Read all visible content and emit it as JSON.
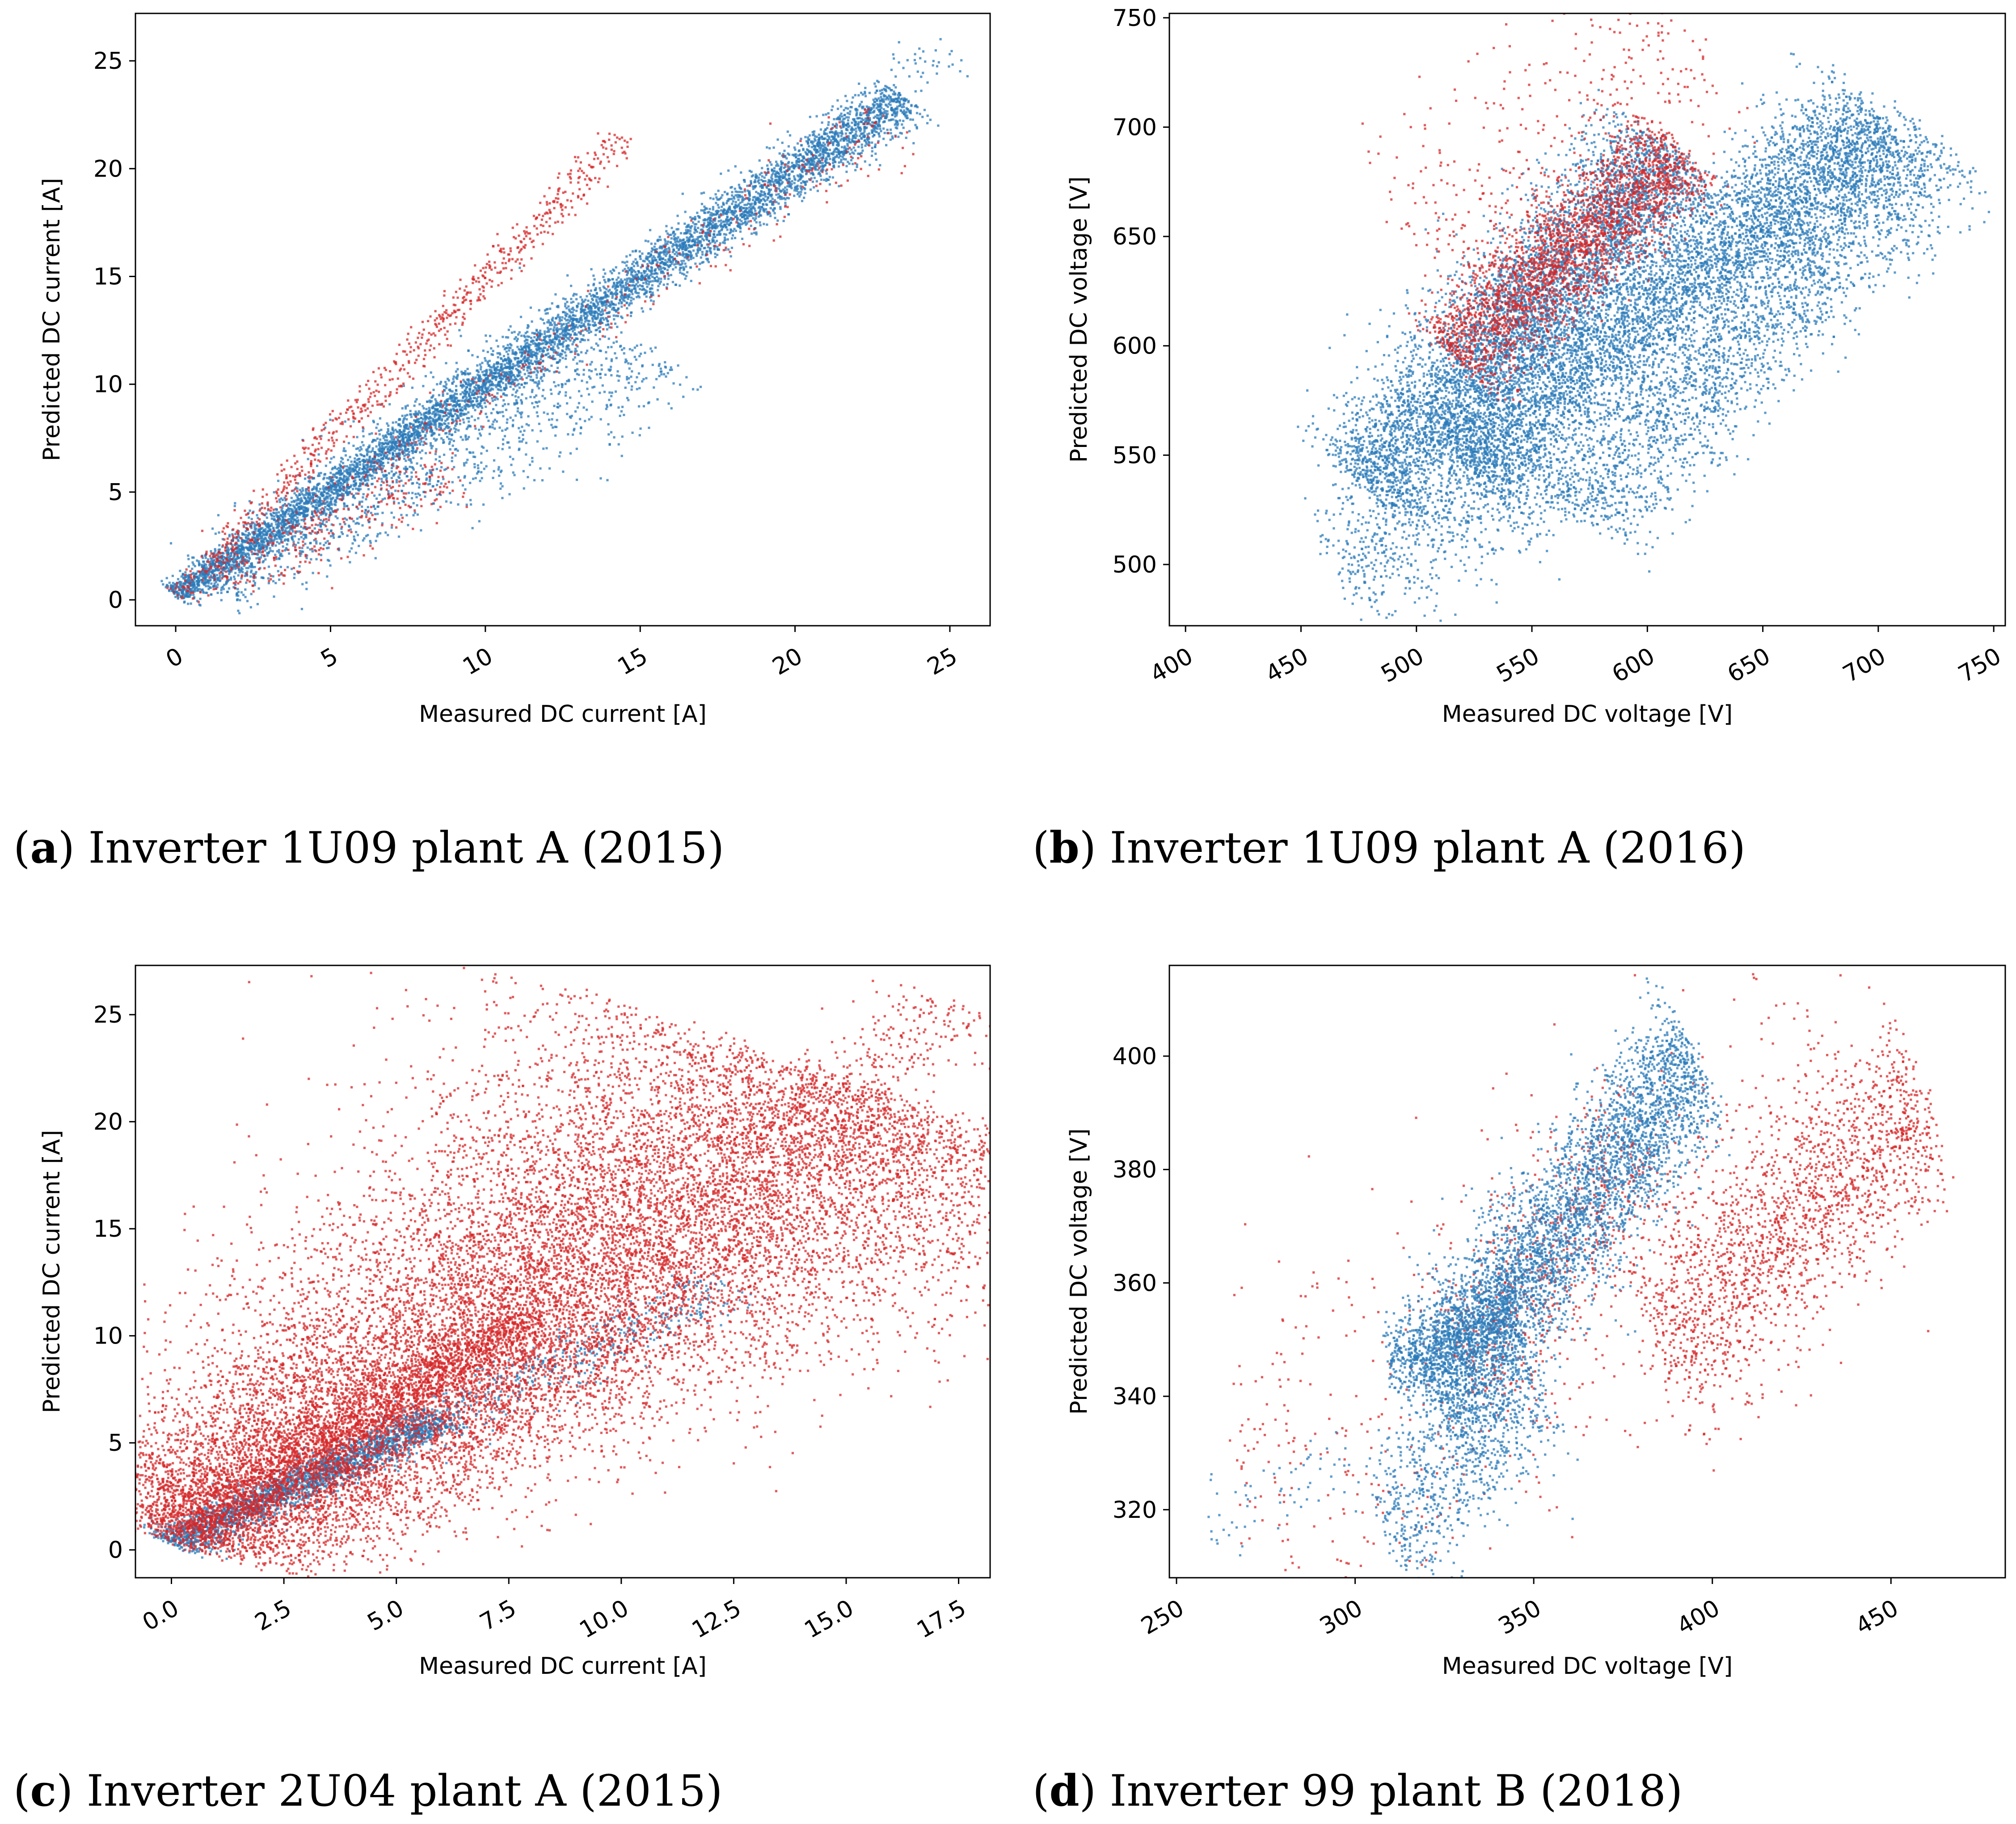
{
  "figure": {
    "colors": {
      "blue": "#2b7bba",
      "red": "#d62728",
      "axis": "#000000"
    },
    "captions": [
      {
        "tag": "a",
        "text": "Inverter 1U09 plant A (2015)"
      },
      {
        "tag": "b",
        "text": "Inverter 1U09 plant A (2016)"
      },
      {
        "tag": "c",
        "text": "Inverter 2U04 plant A (2015)"
      },
      {
        "tag": "d",
        "text": "Inverter 99 plant B (2018)"
      }
    ]
  },
  "chart_data": [
    {
      "id": "a",
      "type": "scatter",
      "xlabel": "Measured DC current [A]",
      "ylabel": "Predicted DC current [A]",
      "xlim": [
        -1.3,
        26.3
      ],
      "ylim": [
        -1.2,
        27.2
      ],
      "xticks": [
        0,
        5,
        10,
        15,
        20,
        25
      ],
      "xtick_labels": [
        "0",
        "5",
        "10",
        "15",
        "20",
        "25"
      ],
      "yticks": [
        0,
        5,
        10,
        15,
        20,
        25
      ],
      "ytick_labels": [
        "0",
        "5",
        "10",
        "15",
        "20",
        "25"
      ],
      "xtick_rotation": 30,
      "series": [
        {
          "name": "blue",
          "color": "#2b7bba",
          "clusters": [
            {
              "x": [
                0,
                23.5
              ],
              "y": [
                0.2,
                23.3
              ],
              "n": 6000,
              "spread": 0.3,
              "scale": 0.03
            },
            {
              "x": [
                1,
                15
              ],
              "y": [
                0.5,
                12.2
              ],
              "n": 1400,
              "spread": 0.7,
              "scale": 0.05
            },
            {
              "x": [
                20,
                25
              ],
              "y": [
                19.8,
                25.6
              ],
              "n": 150,
              "spread": 0.55,
              "scale": 0
            }
          ]
        },
        {
          "name": "red",
          "color": "#d62728",
          "clusters": [
            {
              "x": [
                0,
                14.5
              ],
              "y": [
                0.2,
                21.5
              ],
              "n": 700,
              "spread": 0.28,
              "scale": 0.01
            },
            {
              "x": [
                1,
                23
              ],
              "y": [
                0.6,
                22.4
              ],
              "n": 350,
              "spread": 0.5,
              "scale": 0.02
            },
            {
              "x": [
                1.5,
                9
              ],
              "y": [
                1,
                6
              ],
              "n": 250,
              "spread": 0.7,
              "scale": 0
            }
          ]
        }
      ]
    },
    {
      "id": "b",
      "type": "scatter",
      "xlabel": "Measured DC voltage [V]",
      "ylabel": "Predicted DC voltage [V]",
      "xlim": [
        393,
        755
      ],
      "ylim": [
        472,
        752
      ],
      "xticks": [
        400,
        450,
        500,
        550,
        600,
        650,
        700,
        750
      ],
      "xtick_labels": [
        "400",
        "450",
        "500",
        "550",
        "600",
        "650",
        "700",
        "750"
      ],
      "yticks": [
        500,
        550,
        600,
        650,
        700,
        750
      ],
      "ytick_labels": [
        "500",
        "550",
        "600",
        "650",
        "700",
        "750"
      ],
      "xtick_rotation": 30,
      "series": [
        {
          "name": "blue",
          "color": "#2b7bba",
          "clusters": [
            {
              "x": [
                478,
                610
              ],
              "y": [
                535,
                690
              ],
              "n": 5000,
              "spread": 15,
              "scale": 0
            },
            {
              "x": [
                520,
                700
              ],
              "y": [
                545,
                705
              ],
              "n": 5000,
              "spread": 14,
              "scale": 0
            },
            {
              "x": [
                570,
                725
              ],
              "y": [
                525,
                695
              ],
              "n": 2500,
              "spread": 15,
              "scale": 0
            },
            {
              "x": [
                465,
                560
              ],
              "y": [
                500,
                545
              ],
              "n": 800,
              "spread": 16,
              "scale": 0
            }
          ]
        },
        {
          "name": "red",
          "color": "#d62728",
          "clusters": [
            {
              "x": [
                515,
                615
              ],
              "y": [
                595,
                690
              ],
              "n": 2500,
              "spread": 12,
              "scale": 0
            },
            {
              "x": [
                500,
                620
              ],
              "y": [
                650,
                742
              ],
              "n": 350,
              "spread": 25,
              "scale": 0
            }
          ]
        }
      ]
    },
    {
      "id": "c",
      "type": "scatter",
      "xlabel": "Measured DC current [A]",
      "ylabel": "Predicted DC current [A]",
      "xlim": [
        -0.8,
        18.2
      ],
      "ylim": [
        -1.3,
        27.3
      ],
      "xticks": [
        0,
        2.5,
        5,
        7.5,
        10,
        12.5,
        15,
        17.5
      ],
      "xtick_labels": [
        "0.0",
        "2.5",
        "5.0",
        "7.5",
        "10.0",
        "12.5",
        "15.0",
        "17.5"
      ],
      "yticks": [
        0,
        5,
        10,
        15,
        20,
        25
      ],
      "ytick_labels": [
        "0",
        "5",
        "10",
        "15",
        "20",
        "25"
      ],
      "xtick_rotation": 30,
      "series": [
        {
          "name": "blue",
          "color": "#2b7bba",
          "clusters": [
            {
              "x": [
                0,
                6
              ],
              "y": [
                0.3,
                6.2
              ],
              "n": 2000,
              "spread": 0.35,
              "scale": 0
            },
            {
              "x": [
                0,
                12.5
              ],
              "y": [
                0.3,
                12.5
              ],
              "n": 900,
              "spread": 0.55,
              "scale": 0
            }
          ]
        },
        {
          "name": "red",
          "color": "#d62728",
          "clusters": [
            {
              "x": [
                0.2,
                15.5
              ],
              "y": [
                0.6,
                21.5
              ],
              "n": 16000,
              "spread": 1.6,
              "scale": 0.05
            },
            {
              "x": [
                0,
                8
              ],
              "y": [
                0.3,
                11
              ],
              "n": 1500,
              "spread": 0.5,
              "scale": 0
            },
            {
              "x": [
                14,
                17.5
              ],
              "y": [
                20,
                25.6
              ],
              "n": 300,
              "spread": 0.8,
              "scale": 0
            }
          ]
        }
      ]
    },
    {
      "id": "d",
      "type": "scatter",
      "xlabel": "Measured DC voltage [V]",
      "ylabel": "Predicted DC voltage [V]",
      "xlim": [
        248,
        482
      ],
      "ylim": [
        308,
        416
      ],
      "xticks": [
        250,
        300,
        350,
        400,
        450
      ],
      "xtick_labels": [
        "250",
        "300",
        "350",
        "400",
        "450"
      ],
      "yticks": [
        320,
        340,
        360,
        380,
        400
      ],
      "ytick_labels": [
        "320",
        "340",
        "360",
        "380",
        "400"
      ],
      "xtick_rotation": 30,
      "series": [
        {
          "name": "red",
          "color": "#d62728",
          "clusters": [
            {
              "x": [
                385,
                460
              ],
              "y": [
                348,
                392
              ],
              "n": 1800,
              "spread": 9,
              "scale": 0
            },
            {
              "x": [
                270,
                440
              ],
              "y": [
                320,
                395
              ],
              "n": 700,
              "spread": 16,
              "scale": 0
            },
            {
              "x": [
                330,
                380
              ],
              "y": [
                345,
                385
              ],
              "n": 500,
              "spread": 8,
              "scale": 0
            }
          ]
        },
        {
          "name": "blue",
          "color": "#2b7bba",
          "clusters": [
            {
              "x": [
                322,
                395
              ],
              "y": [
                340,
                400
              ],
              "n": 4000,
              "spread": 7,
              "scale": 0
            },
            {
              "x": [
                310,
                345
              ],
              "y": [
                345,
                356
              ],
              "n": 900,
              "spread": 4,
              "scale": 0
            },
            {
              "x": [
                310,
                350
              ],
              "y": [
                315,
                345
              ],
              "n": 900,
              "spread": 8,
              "scale": 0
            },
            {
              "x": [
                258,
                300
              ],
              "y": [
                318,
                328
              ],
              "n": 60,
              "spread": 3,
              "scale": 0
            }
          ]
        }
      ]
    }
  ]
}
